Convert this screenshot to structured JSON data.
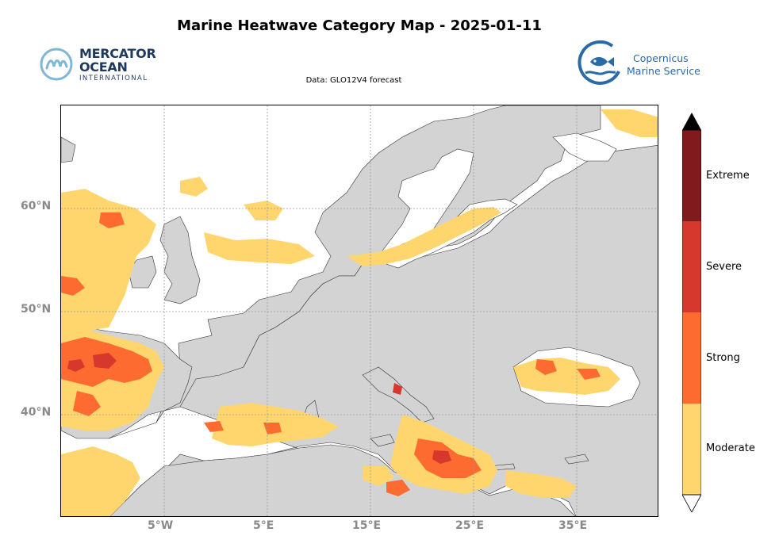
{
  "title": "Marine Heatwave Category Map - 2025-01-11",
  "subtitle": "Data: GLO12V4 forecast",
  "logo_left": {
    "line1": "MERCATOR",
    "line2": "OCEAN",
    "line3": "INTERNATIONAL"
  },
  "logo_right": {
    "line1": "Copernicus",
    "line2": "Marine Service"
  },
  "colors": {
    "land": "#d3d3d3",
    "ocean": "#ffffff",
    "moderate": "#ffd66e",
    "strong": "#fe6b30",
    "severe": "#d7382d",
    "extreme": "#801a1d",
    "over": "#000000",
    "under": "#ffffff"
  },
  "lat_labels": [
    "60°N",
    "50°N",
    "40°N"
  ],
  "lon_labels": [
    "5°W",
    "5°E",
    "15°E",
    "25°E",
    "35°E"
  ],
  "colorbar": {
    "categories": [
      "Moderate",
      "Strong",
      "Severe",
      "Extreme"
    ]
  }
}
